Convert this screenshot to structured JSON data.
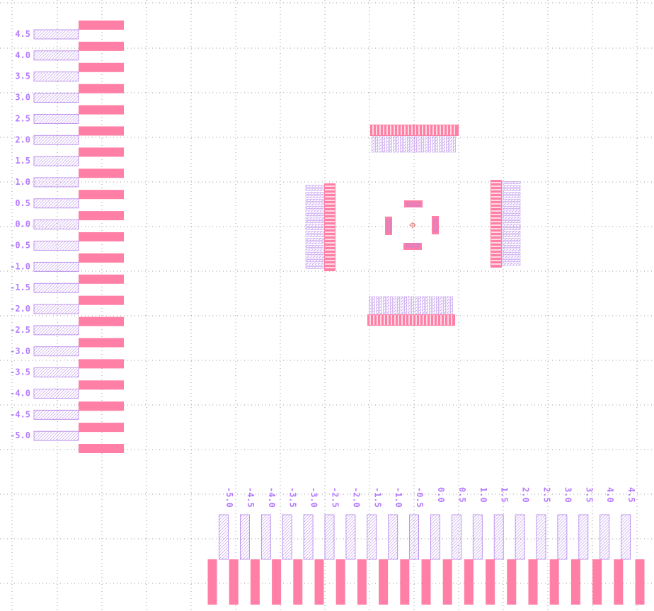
{
  "colors": {
    "background": "#ffffff",
    "grid": "#9a9a9a",
    "pad": "#ff7fa6",
    "hatch": "#b07ee8",
    "label": "#b57bff",
    "origin": "#e06060"
  },
  "left_scale": {
    "labels": [
      "4.5",
      "4.0",
      "3.5",
      "3.0",
      "2.5",
      "2.0",
      "1.5",
      "1.0",
      "0.5",
      "0.0",
      "-0.5",
      "-1.0",
      "-1.5",
      "-2.0",
      "-2.5",
      "-3.0",
      "-3.5",
      "-4.0",
      "-4.5",
      "-5.0"
    ]
  },
  "bottom_scale": {
    "labels": [
      "-5.0",
      "-4.5",
      "-4.0",
      "-3.5",
      "-3.0",
      "-2.5",
      "-2.0",
      "-1.5",
      "-1.0",
      "-0.5",
      "0.0",
      "0.5",
      "1.0",
      "1.5",
      "2.0",
      "2.5",
      "3.0",
      "3.5",
      "4.0",
      "4.5"
    ]
  },
  "footprint": {
    "top_row_pins": 24,
    "bottom_row_pins": 24,
    "left_column_pins": 24,
    "right_column_pins": 24
  }
}
